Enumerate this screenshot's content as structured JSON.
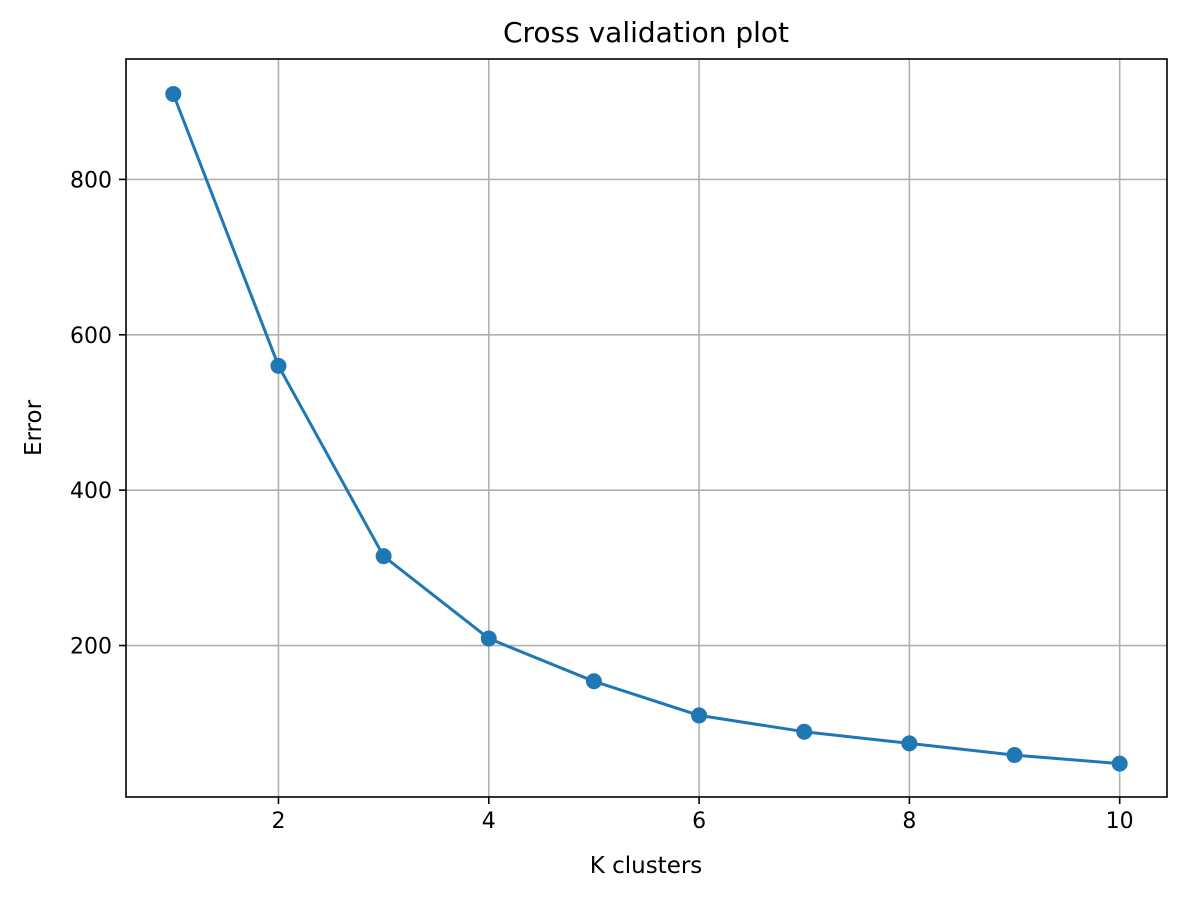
{
  "chart_data": {
    "type": "line",
    "title": "Cross validation plot",
    "xlabel": "K clusters",
    "ylabel": "Error",
    "x": [
      1,
      2,
      3,
      4,
      5,
      6,
      7,
      8,
      9,
      10
    ],
    "series": [
      {
        "values": [
          910,
          560,
          315,
          209,
          154,
          110,
          89,
          74,
          59,
          48
        ],
        "color": "#1f77b4",
        "marker": "circle"
      }
    ],
    "xlim": [
      0.55,
      10.45
    ],
    "ylim": [
      5,
      955
    ],
    "xticks": [
      2,
      4,
      6,
      8,
      10
    ],
    "yticks": [
      200,
      400,
      600,
      800
    ],
    "grid": true
  }
}
